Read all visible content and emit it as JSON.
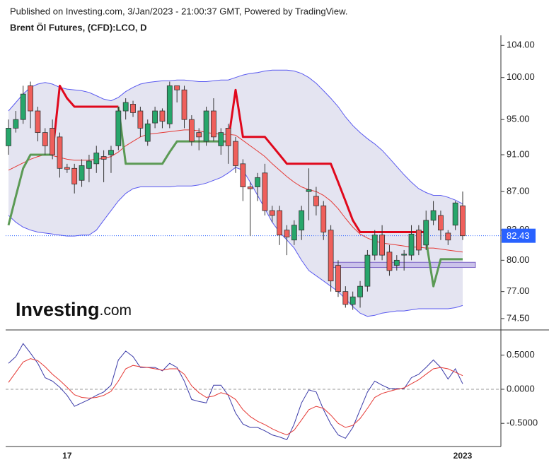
{
  "header": {
    "published": "Published on Investing.com, 3/Jan/2023 - 21:00:37 GMT, Powered by TradingView.",
    "symbol": "Brent Öl Futures, (CFD):LCO, D"
  },
  "logo": {
    "brand": "Investing",
    "suffix": ".com"
  },
  "chart_data": [
    {
      "type": "candlestick",
      "log_scale": true,
      "up_color": "#27a66b",
      "down_color": "#ef5f5b",
      "categories": [
        null,
        null,
        null,
        null,
        null,
        null,
        null,
        null,
        "17",
        null,
        null,
        null,
        null,
        null,
        null,
        null,
        null,
        null,
        null,
        null,
        null,
        null,
        null,
        null,
        null,
        null,
        null,
        null,
        null,
        null,
        null,
        null,
        null,
        null,
        null,
        null,
        null,
        null,
        null,
        null,
        null,
        null,
        null,
        null,
        null,
        null,
        null,
        null,
        null,
        null,
        null,
        null,
        null,
        null,
        null,
        null,
        null,
        null,
        null,
        null,
        null,
        null,
        "2023"
      ],
      "open": [
        92,
        94,
        95,
        99,
        96,
        93.5,
        94,
        93,
        89.6,
        89.5,
        88.2,
        89.5,
        90,
        90.8,
        91,
        92,
        96,
        96.8,
        96,
        92.5,
        94.6,
        96,
        94.5,
        99,
        98.5,
        95,
        93.5,
        92.5,
        96,
        92,
        94,
        92.5,
        90,
        87.5,
        87.5,
        89,
        85,
        85,
        83,
        82,
        83,
        87,
        86.5,
        85.5,
        83,
        79.5,
        77,
        75.8,
        76.5,
        77.5,
        80.5,
        82.5,
        80.8,
        79.5,
        80.5,
        80.5,
        83,
        81.5,
        84,
        84.5,
        82.7,
        83.5,
        85.5
      ],
      "high": [
        95,
        96,
        99,
        99.5,
        96.5,
        94,
        95,
        93.5,
        90,
        90,
        90.5,
        91,
        92,
        91.5,
        92,
        96.5,
        97.5,
        97.2,
        96.5,
        95,
        96.5,
        96.3,
        99.5,
        99,
        99,
        95.5,
        94,
        96.5,
        97.5,
        94,
        94.5,
        93,
        90.5,
        88,
        89,
        90,
        85.5,
        85.5,
        83.5,
        84,
        85.5,
        89.5,
        87.5,
        86,
        83.5,
        80,
        77.5,
        77,
        78,
        81,
        83,
        83.5,
        81.5,
        80.5,
        81,
        83.5,
        83.5,
        85,
        86,
        85,
        83,
        86,
        87
      ],
      "low": [
        91,
        93.5,
        94.5,
        94,
        92.5,
        91,
        90.5,
        88.5,
        89,
        86.8,
        87.5,
        88,
        89,
        88,
        89,
        91.5,
        95,
        95.3,
        93,
        92,
        94,
        94,
        94,
        97,
        94,
        92,
        91.5,
        92,
        92.5,
        91,
        90,
        89,
        86,
        82.4,
        86,
        84.5,
        83.8,
        81.5,
        80.5,
        81.5,
        82,
        84,
        84.5,
        82,
        77,
        76.5,
        75.5,
        75.3,
        75.5,
        77,
        80,
        80,
        78.5,
        79,
        79,
        80,
        80.5,
        81,
        83.5,
        82,
        81.5,
        83,
        82
      ],
      "close": [
        94,
        95,
        98,
        96,
        93.5,
        92,
        91,
        89.5,
        89.4,
        87.8,
        89.8,
        90.3,
        91.2,
        90.5,
        91.5,
        96,
        97,
        95.8,
        94,
        94.5,
        96,
        94.8,
        99,
        98.5,
        95,
        92.5,
        93,
        96,
        93,
        93.5,
        92,
        89.8,
        87.5,
        87.3,
        88.5,
        85,
        84.5,
        82.5,
        82.3,
        83.5,
        85,
        87.2,
        85.5,
        82.8,
        78,
        77,
        75.8,
        76.5,
        77.5,
        80.5,
        82.5,
        80.5,
        79,
        80,
        80.6,
        82.6,
        81,
        84,
        85,
        83,
        82,
        85.8,
        82.43
      ],
      "bands": {
        "fill": "#e4e4f1",
        "line_color": "#5a5af0",
        "mid_color": "#e53935",
        "upper": [
          96,
          97,
          98,
          98.8,
          99.2,
          99.4,
          99.2,
          98.8,
          98.6,
          98.5,
          98.4,
          98.2,
          97.8,
          97.4,
          97.2,
          97.6,
          98.3,
          98.8,
          99.2,
          99.4,
          99.5,
          99.6,
          99.6,
          99.7,
          99.7,
          99.6,
          99.5,
          99.5,
          99.6,
          99.7,
          99.7,
          100,
          100.3,
          100.5,
          100.6,
          100.8,
          100.9,
          100.9,
          100.9,
          100.8,
          100.5,
          100,
          99.3,
          98.4,
          97.5,
          96.5,
          95.3,
          94.3,
          93.5,
          92.8,
          92.2,
          91.5,
          90.6,
          89.7,
          88.8,
          88,
          87.3,
          86.9,
          86.6,
          86.6,
          86.4,
          86.1,
          85.7
        ],
        "middle": [
          89.3,
          89.7,
          90.1,
          90.5,
          90.8,
          91,
          90.9,
          90.7,
          90.5,
          90.4,
          90.4,
          90.4,
          90.5,
          90.6,
          90.8,
          91.3,
          92,
          92.5,
          93,
          93.3,
          93.4,
          93.5,
          93.6,
          93.7,
          93.8,
          93.8,
          93.7,
          93.5,
          93.4,
          93.3,
          93.3,
          93.2,
          92.6,
          92,
          91.4,
          90.8,
          90,
          89.3,
          88.6,
          88,
          87.5,
          87.2,
          87,
          86.6,
          86,
          85.2,
          84.2,
          83.3,
          82.6,
          82.2,
          81.9,
          81.7,
          81.6,
          81.5,
          81.4,
          81.3,
          81.3,
          81.2,
          81.2,
          81.1,
          81,
          80.9,
          80.8
        ],
        "lower": [
          84.5,
          83.8,
          83.3,
          83,
          82.8,
          82.7,
          82.6,
          82.5,
          82.4,
          82.4,
          82.5,
          82.5,
          83,
          84,
          85,
          86,
          86.8,
          87.3,
          87.5,
          87.5,
          87.5,
          87.5,
          87.5,
          87.6,
          87.6,
          87.6,
          87.7,
          87.9,
          88.2,
          88.5,
          89,
          89.6,
          89.3,
          88,
          86.6,
          85.2,
          83.8,
          82.8,
          82,
          81.2,
          80,
          79,
          78.5,
          78,
          77.5,
          77,
          76.3,
          75.6,
          75,
          74.7,
          74.8,
          75,
          75.1,
          75.2,
          75.2,
          75.3,
          75.4,
          75.4,
          75.4,
          75.4,
          75.4,
          75.5,
          75.7
        ]
      },
      "trend": [
        {
          "color": "#e0081c",
          "values": [
            null,
            null,
            null,
            null,
            null,
            null,
            91,
            99,
            97.5,
            96.5,
            96.5,
            96.5,
            96.5,
            96.5,
            96.5,
            96.5,
            null,
            null,
            null,
            null,
            null,
            null,
            null,
            null,
            null,
            null,
            null,
            null,
            null,
            null,
            92.5,
            98.5,
            93,
            93,
            93,
            93,
            92,
            91,
            90,
            90,
            90,
            90,
            90,
            90,
            90,
            88,
            86,
            84,
            82.8,
            82.8,
            82.8,
            82.8,
            82.8,
            82.8,
            82.8,
            82.8,
            82.8,
            82.8,
            null,
            null,
            null,
            null,
            null
          ]
        },
        {
          "color": "#5b9a55",
          "values": [
            83.5,
            86.5,
            89.5,
            91,
            91,
            91,
            91,
            null,
            null,
            null,
            null,
            null,
            null,
            null,
            null,
            96.5,
            90,
            90,
            90,
            90,
            90,
            90,
            91.3,
            92.5,
            92.5,
            92.5,
            92.5,
            92.5,
            92.5,
            92.5,
            92.5,
            null,
            null,
            null,
            null,
            null,
            null,
            null,
            null,
            null,
            null,
            null,
            null,
            null,
            null,
            null,
            null,
            null,
            null,
            null,
            null,
            null,
            null,
            null,
            null,
            null,
            null,
            82,
            77.5,
            80.1,
            80.1,
            80.1,
            80.1
          ]
        }
      ],
      "zone": {
        "low": 79.3,
        "high": 79.8,
        "fill": "#cbc3ea",
        "stroke": "#7b62c4"
      },
      "last_price": 82.43,
      "last_price_color": "#2962ff",
      "ylim": [
        73.6,
        106.2
      ],
      "yticks": [
        {
          "value": 104,
          "label": "104.00"
        },
        {
          "value": 100,
          "label": "100.00"
        },
        {
          "value": 95,
          "label": "95.00"
        },
        {
          "value": 91,
          "label": "91.00"
        },
        {
          "value": 87,
          "label": "87.00"
        },
        {
          "value": 83,
          "label": "83.00"
        },
        {
          "value": 80,
          "label": "80.00"
        },
        {
          "value": 77,
          "label": "77.00"
        },
        {
          "value": 74.5,
          "label": "74.50"
        }
      ]
    },
    {
      "type": "line",
      "series": [
        {
          "color": "#3a3aa8",
          "values": [
            0.38,
            0.48,
            0.67,
            0.53,
            0.38,
            0.17,
            0.12,
            0.03,
            -0.09,
            -0.25,
            -0.2,
            -0.15,
            -0.09,
            -0.04,
            0.06,
            0.43,
            0.56,
            0.48,
            0.32,
            0.32,
            0.32,
            0.27,
            0.38,
            0.32,
            0.12,
            -0.15,
            -0.18,
            -0.2,
            0.06,
            0.06,
            -0.09,
            -0.35,
            -0.51,
            -0.56,
            -0.56,
            -0.61,
            -0.67,
            -0.7,
            -0.74,
            -0.51,
            -0.2,
            -0.01,
            -0.04,
            -0.3,
            -0.51,
            -0.67,
            -0.72,
            -0.56,
            -0.3,
            -0.04,
            0.12,
            0.06,
            0.01,
            0.01,
            0.01,
            0.17,
            0.22,
            0.32,
            0.43,
            0.32,
            0.15,
            0.3,
            0.08
          ]
        },
        {
          "color": "#e53935",
          "values": [
            0.1,
            0.25,
            0.4,
            0.45,
            0.42,
            0.33,
            0.22,
            0.13,
            0.03,
            -0.08,
            -0.12,
            -0.13,
            -0.12,
            -0.09,
            -0.03,
            0.12,
            0.3,
            0.35,
            0.33,
            0.32,
            0.3,
            0.28,
            0.3,
            0.3,
            0.22,
            0.05,
            -0.05,
            -0.12,
            -0.1,
            -0.05,
            -0.08,
            -0.15,
            -0.3,
            -0.4,
            -0.47,
            -0.52,
            -0.58,
            -0.63,
            -0.67,
            -0.6,
            -0.45,
            -0.3,
            -0.25,
            -0.28,
            -0.38,
            -0.5,
            -0.56,
            -0.53,
            -0.43,
            -0.28,
            -0.12,
            -0.06,
            -0.03,
            0,
            0.02,
            0.08,
            0.14,
            0.22,
            0.3,
            0.32,
            0.3,
            0.25,
            0.2
          ]
        }
      ],
      "ylim": [
        -0.84,
        0.86
      ],
      "yticks": [
        {
          "value": 0.5,
          "label": "0.5000"
        },
        {
          "value": 0,
          "label": "0.0000"
        },
        {
          "value": -0.5,
          "label": "-0.5000"
        }
      ]
    }
  ]
}
